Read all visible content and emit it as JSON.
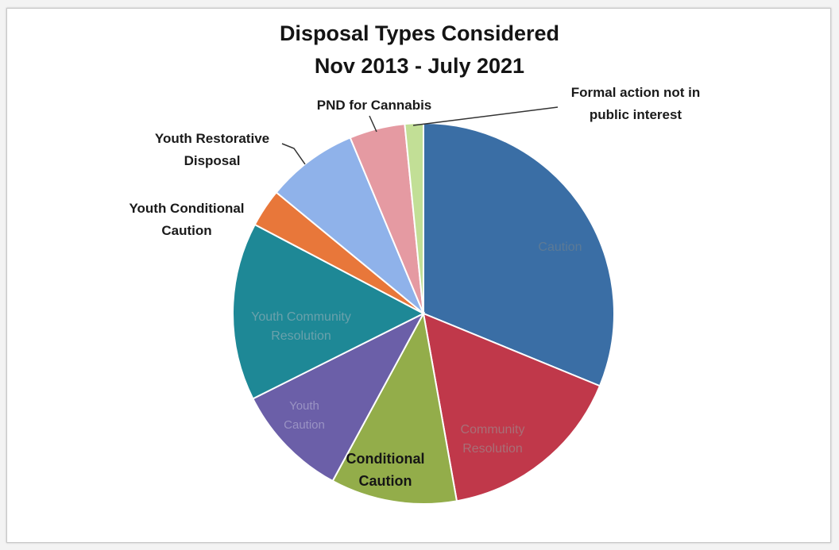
{
  "chart_data": {
    "type": "pie",
    "title": [
      "Disposal Types Considered",
      "Nov 2013 - July 2021"
    ],
    "legend": "none",
    "start_angle_deg": 0,
    "direction": "clockwise",
    "slices": [
      {
        "label": "Caution",
        "value": 31.8,
        "color": "#3a6ea5",
        "label_color": "#5c7a96"
      },
      {
        "label": "Community Resolution",
        "value": 16.3,
        "color": "#c0384a",
        "label_color": "#a86f77"
      },
      {
        "label": "Conditional Caution",
        "value": 10.9,
        "color": "#93ad4a",
        "label_color": "#151515"
      },
      {
        "label": "Youth Caution",
        "value": 9.9,
        "color": "#6b5fa8",
        "label_color": "#9a93c4"
      },
      {
        "label": "Youth Community Resolution",
        "value": 15.4,
        "color": "#1e8896",
        "label_color": "#6aa1ab"
      },
      {
        "label": "Youth Conditional Caution",
        "value": 3.3,
        "color": "#e8773a",
        "label_color": "#1a1a1a"
      },
      {
        "label": "Youth Restorative Disposal",
        "value": 7.9,
        "color": "#8fb2ea",
        "label_color": "#1a1a1a"
      },
      {
        "label": "PND for Cannabis",
        "value": 4.8,
        "color": "#e59aa2",
        "label_color": "#1a1a1a"
      },
      {
        "label": "Formal action not in public interest",
        "value": 1.6,
        "color": "#c2df96",
        "label_color": "#1a1a1a"
      }
    ]
  }
}
